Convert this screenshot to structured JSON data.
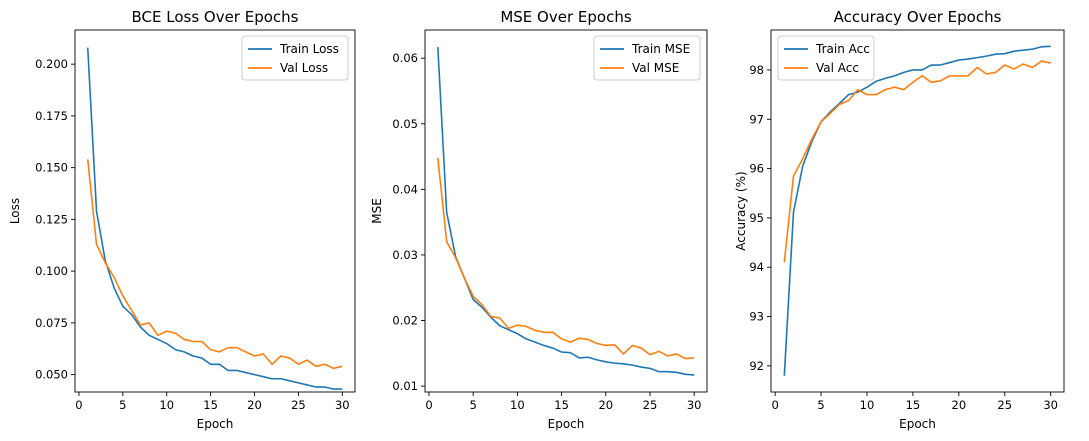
{
  "chart_data": [
    {
      "type": "line",
      "title": "BCE Loss Over Epochs",
      "xlabel": "Epoch",
      "ylabel": "Loss",
      "xlim": [
        -0.45,
        31.45
      ],
      "ylim": [
        0.0416,
        0.2165
      ],
      "xticks": [
        0,
        5,
        10,
        15,
        20,
        25,
        30
      ],
      "yticks": [
        0.05,
        0.075,
        0.1,
        0.125,
        0.15,
        0.175,
        0.2
      ],
      "ytick_decimals": 3,
      "legend": "top-right",
      "grid": false,
      "x": [
        1,
        2,
        3,
        4,
        5,
        6,
        7,
        8,
        9,
        10,
        11,
        12,
        13,
        14,
        15,
        16,
        17,
        18,
        19,
        20,
        21,
        22,
        23,
        24,
        25,
        26,
        27,
        28,
        29,
        30
      ],
      "series": [
        {
          "name": "Train Loss",
          "color": "#1f77b4",
          "values": [
            0.208,
            0.129,
            0.105,
            0.092,
            0.083,
            0.079,
            0.073,
            0.069,
            0.067,
            0.065,
            0.062,
            0.061,
            0.059,
            0.058,
            0.055,
            0.055,
            0.052,
            0.052,
            0.051,
            0.05,
            0.049,
            0.048,
            0.048,
            0.047,
            0.046,
            0.045,
            0.044,
            0.044,
            0.043,
            0.043
          ]
        },
        {
          "name": "Val Loss",
          "color": "#ff7f0e",
          "values": [
            0.154,
            0.113,
            0.104,
            0.097,
            0.088,
            0.081,
            0.074,
            0.075,
            0.069,
            0.071,
            0.07,
            0.067,
            0.066,
            0.066,
            0.062,
            0.061,
            0.063,
            0.063,
            0.061,
            0.059,
            0.06,
            0.055,
            0.059,
            0.058,
            0.055,
            0.057,
            0.054,
            0.055,
            0.053,
            0.054
          ]
        }
      ]
    },
    {
      "type": "line",
      "title": "MSE Over Epochs",
      "xlabel": "Epoch",
      "ylabel": "MSE",
      "xlim": [
        -0.45,
        31.45
      ],
      "ylim": [
        0.0091,
        0.0643
      ],
      "xticks": [
        0,
        5,
        10,
        15,
        20,
        25,
        30
      ],
      "yticks": [
        0.01,
        0.02,
        0.03,
        0.04,
        0.05,
        0.06
      ],
      "ytick_decimals": 2,
      "legend": "top-right",
      "grid": false,
      "x": [
        1,
        2,
        3,
        4,
        5,
        6,
        7,
        8,
        9,
        10,
        11,
        12,
        13,
        14,
        15,
        16,
        17,
        18,
        19,
        20,
        21,
        22,
        23,
        24,
        25,
        26,
        27,
        28,
        29,
        30
      ],
      "series": [
        {
          "name": "Train MSE",
          "color": "#1f77b4",
          "values": [
            0.0617,
            0.0365,
            0.0298,
            0.0265,
            0.0232,
            0.022,
            0.0205,
            0.0192,
            0.0186,
            0.018,
            0.0172,
            0.0167,
            0.0162,
            0.0158,
            0.0152,
            0.0151,
            0.0143,
            0.0144,
            0.014,
            0.0137,
            0.0135,
            0.0134,
            0.0132,
            0.0129,
            0.0127,
            0.0122,
            0.0122,
            0.0121,
            0.0118,
            0.0117
          ]
        },
        {
          "name": "Val MSE",
          "color": "#ff7f0e",
          "values": [
            0.0448,
            0.032,
            0.0296,
            0.0265,
            0.0237,
            0.0224,
            0.0206,
            0.0204,
            0.0188,
            0.0193,
            0.0191,
            0.0185,
            0.0182,
            0.0182,
            0.0172,
            0.0167,
            0.0173,
            0.0171,
            0.0165,
            0.0162,
            0.0163,
            0.0149,
            0.0162,
            0.0158,
            0.0148,
            0.0153,
            0.0146,
            0.0149,
            0.0142,
            0.0143
          ]
        }
      ]
    },
    {
      "type": "line",
      "title": "Accuracy Over Epochs",
      "xlabel": "Epoch",
      "ylabel": "Accuracy (%)",
      "xlim": [
        -0.45,
        31.45
      ],
      "ylim": [
        91.47,
        98.81
      ],
      "xticks": [
        0,
        5,
        10,
        15,
        20,
        25,
        30
      ],
      "yticks": [
        92,
        93,
        94,
        95,
        96,
        97,
        98
      ],
      "ytick_decimals": 0,
      "legend": "top-left",
      "grid": false,
      "x": [
        1,
        2,
        3,
        4,
        5,
        6,
        7,
        8,
        9,
        10,
        11,
        12,
        13,
        14,
        15,
        16,
        17,
        18,
        19,
        20,
        21,
        22,
        23,
        24,
        25,
        26,
        27,
        28,
        29,
        30
      ],
      "series": [
        {
          "name": "Train Acc",
          "color": "#1f77b4",
          "values": [
            91.8,
            95.12,
            96.05,
            96.55,
            96.95,
            97.15,
            97.32,
            97.5,
            97.55,
            97.65,
            97.77,
            97.83,
            97.88,
            97.95,
            98.0,
            98.0,
            98.1,
            98.1,
            98.15,
            98.2,
            98.22,
            98.25,
            98.28,
            98.32,
            98.33,
            98.38,
            98.4,
            98.42,
            98.47,
            98.48
          ]
        },
        {
          "name": "Val Acc",
          "color": "#ff7f0e",
          "values": [
            94.1,
            95.85,
            96.2,
            96.6,
            96.95,
            97.12,
            97.3,
            97.38,
            97.6,
            97.5,
            97.5,
            97.6,
            97.65,
            97.6,
            97.75,
            97.88,
            97.75,
            97.78,
            97.88,
            97.88,
            97.88,
            98.05,
            97.92,
            97.95,
            98.1,
            98.02,
            98.12,
            98.05,
            98.18,
            98.14
          ]
        }
      ]
    }
  ]
}
